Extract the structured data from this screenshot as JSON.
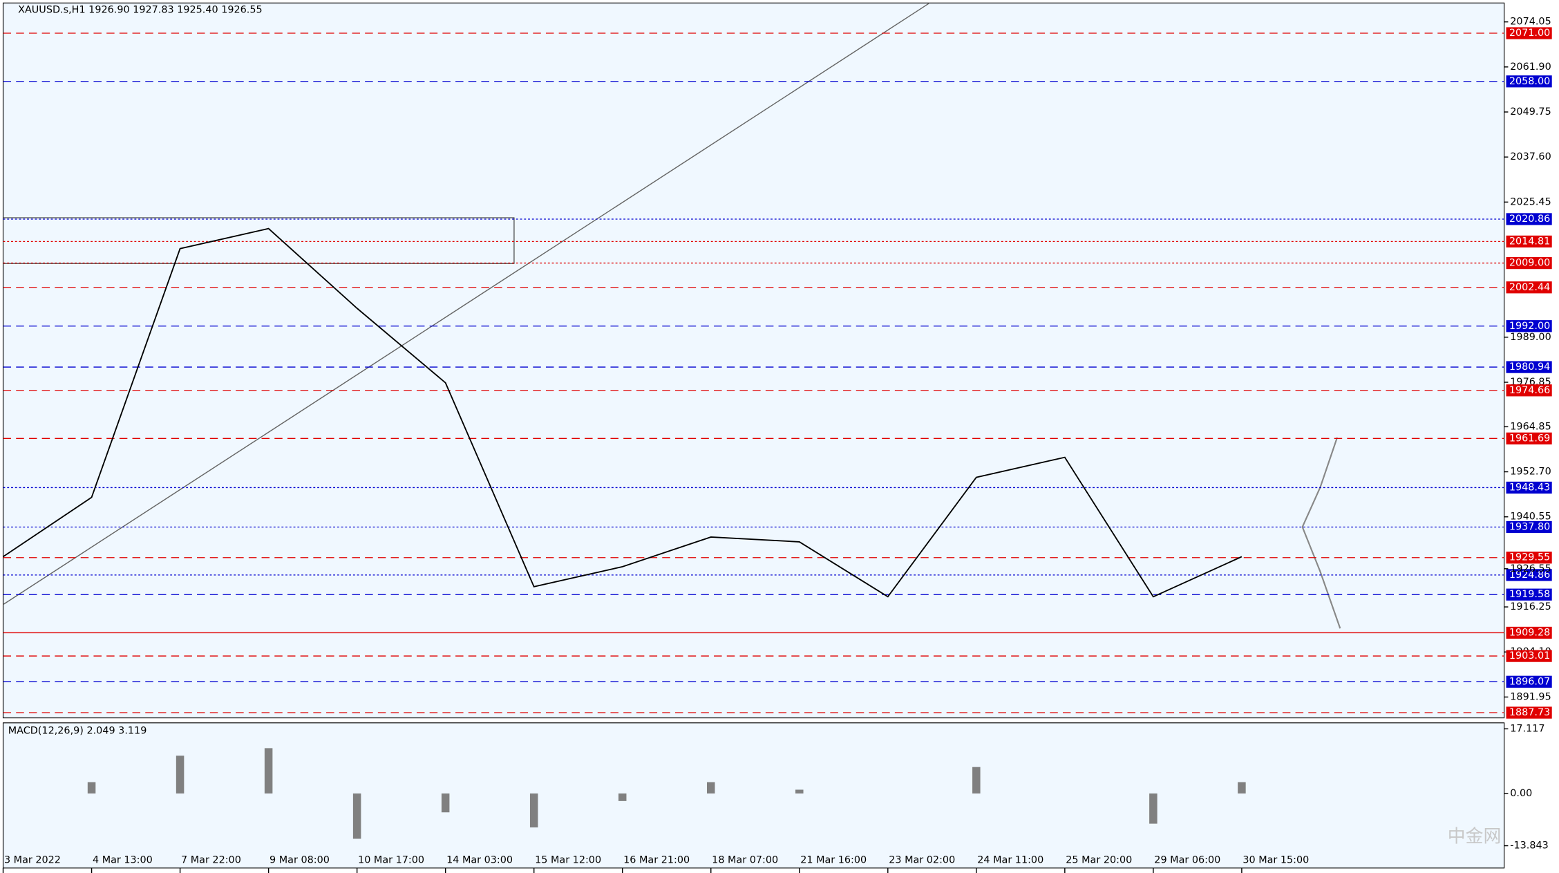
{
  "header": "XAUUSD.s,H1  1926.90 1927.83 1925.40 1926.55",
  "watermark": "中金网",
  "chart_data": [
    {
      "type": "line",
      "categories": [
        "3 Mar 2022",
        "4 Mar 13:00",
        "7 Mar 22:00",
        "9 Mar 08:00",
        "10 Mar 17:00",
        "14 Mar 03:00",
        "15 Mar 12:00",
        "16 Mar 21:00",
        "18 Mar 07:00",
        "21 Mar 16:00",
        "23 Mar 02:00",
        "24 Mar 11:00",
        "25 Mar 20:00",
        "29 Mar 06:00",
        "30 Mar 15:00"
      ],
      "values": [
        1929.8,
        1945.8,
        2012.9,
        2018.3,
        1996.8,
        1976.7,
        1921.7,
        1927.1,
        1935.1,
        1933.8,
        1919.0,
        1951.2,
        1956.6,
        1919.0,
        1929.8
      ],
      "color": "#000000",
      "ylim": [
        1886.32,
        2079.15
      ],
      "yticks": [
        2074.05,
        {
          "value": 2061.9,
          "label": "2061.90"
        },
        2049.75,
        {
          "value": 2037.6,
          "label": "2037.60"
        },
        2025.45,
        {
          "value": 1989,
          "label": "1989.00"
        },
        1976.85,
        1964.85,
        {
          "value": 1952.7,
          "label": "1952.70"
        },
        1940.55,
        1916.25,
        {
          "value": 1904.1,
          "label": "1904.10"
        },
        1891.95
      ],
      "last_price": 1926.55,
      "levels": [
        {
          "value": 2071,
          "label": "2071.00",
          "color": "#e00000",
          "style": "dashed"
        },
        {
          "value": 2058,
          "label": "2058.00",
          "color": "#0000d0",
          "style": "dashed"
        },
        {
          "value": 2020.86,
          "label": "2020.86",
          "color": "#0000d0",
          "style": "dotted"
        },
        {
          "value": 2014.81,
          "label": "2014.81",
          "color": "#e00000",
          "style": "dotted"
        },
        {
          "value": 2009,
          "label": "2009.00",
          "color": "#e00000",
          "style": "dotted"
        },
        {
          "value": 2002.44,
          "label": "2002.44",
          "color": "#e00000",
          "style": "dashed"
        },
        {
          "value": 1992,
          "label": "1992.00",
          "color": "#0000d0",
          "style": "dashed"
        },
        {
          "value": 1980.94,
          "label": "1980.94",
          "color": "#0000d0",
          "style": "dashed"
        },
        {
          "value": 1974.66,
          "label": "1974.66",
          "color": "#e00000",
          "style": "dashed"
        },
        {
          "value": 1961.69,
          "label": "1961.69",
          "color": "#e00000",
          "style": "dashed"
        },
        {
          "value": 1948.43,
          "label": "1948.43",
          "color": "#0000d0",
          "style": "dotted"
        },
        {
          "value": 1937.8,
          "label": "1937.80",
          "color": "#0000d0",
          "style": "dotted"
        },
        {
          "value": 1929.55,
          "label": "1929.55",
          "color": "#e00000",
          "style": "dashed"
        },
        {
          "value": 1924.86,
          "label": "1924.86",
          "color": "#0000d0",
          "style": "dotted"
        },
        {
          "value": 1919.58,
          "label": "1919.58",
          "color": "#0000d0",
          "style": "dashed"
        },
        {
          "value": 1909.28,
          "label": "1909.28",
          "color": "#e00000",
          "style": "solid"
        },
        {
          "value": 1903.01,
          "label": "1903.01",
          "color": "#e00000",
          "style": "dashed"
        },
        {
          "value": 1896.07,
          "label": "1896.07",
          "color": "#0000d0",
          "style": "dashed"
        },
        {
          "value": 1887.73,
          "label": "1887.73",
          "color": "#e00000",
          "style": "dashed"
        }
      ]
    },
    {
      "type": "bar",
      "title": "MACD(12,26,9) 2.049 3.119",
      "values": [
        0,
        3,
        10,
        12,
        -12,
        -5,
        -9,
        -2,
        3,
        1,
        0,
        7,
        0,
        -8,
        3
      ],
      "color": "#808080",
      "ylim": [
        -19.75,
        18.7
      ],
      "yticks": [
        17.117,
        {
          "value": 0,
          "label": "0.00"
        },
        {
          "value": -13.843,
          "label": "-13.843"
        }
      ]
    }
  ]
}
